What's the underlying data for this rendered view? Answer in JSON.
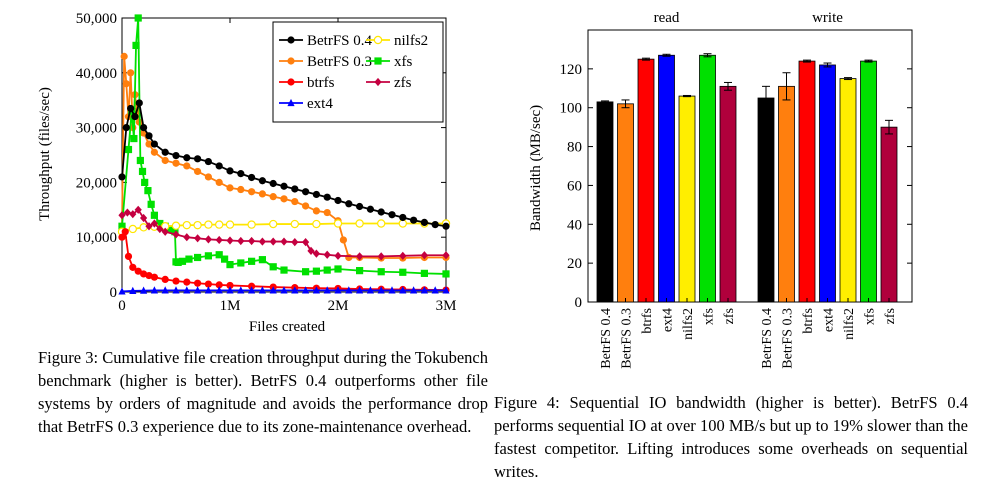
{
  "figure3": {
    "caption": "Figure 3: Cumulative file creation throughput during the Tokubench benchmark (higher is better). BetrFS 0.4 outperforms other file systems by orders of magnitude and avoids the performance drop that BetrFS 0.3 experience due to its zone-maintenance overhead.",
    "chart_data": {
      "type": "line",
      "xlabel": "Files created",
      "ylabel": "Throughput (files/sec)",
      "xlim": [
        0,
        3000000
      ],
      "ylim": [
        0,
        50000
      ],
      "xticks": [
        0,
        1000000,
        2000000,
        3000000
      ],
      "xtick_labels": [
        "0",
        "1M",
        "2M",
        "3M"
      ],
      "yticks": [
        0,
        10000,
        20000,
        30000,
        40000,
        50000
      ],
      "ytick_labels": [
        "0",
        "10,000",
        "20,000",
        "30,000",
        "40,000",
        "50,000"
      ],
      "grid": false,
      "legend_position": "top-right",
      "series": [
        {
          "name": "BetrFS 0.4",
          "color": "#000000",
          "marker": "circle-filled",
          "x": [
            0,
            40000,
            80000,
            120000,
            160000,
            200000,
            250000,
            300000,
            400000,
            500000,
            600000,
            700000,
            800000,
            900000,
            1000000,
            1100000,
            1200000,
            1300000,
            1400000,
            1500000,
            1600000,
            1700000,
            1800000,
            1900000,
            2000000,
            2100000,
            2200000,
            2300000,
            2400000,
            2500000,
            2600000,
            2700000,
            2800000,
            2900000,
            3000000
          ],
          "y": [
            21000,
            30000,
            33500,
            32000,
            34500,
            30000,
            28500,
            27000,
            25500,
            24900,
            24500,
            24300,
            23800,
            23000,
            22100,
            21600,
            20900,
            20300,
            19800,
            19300,
            18800,
            18300,
            17800,
            17300,
            16700,
            16100,
            15600,
            15100,
            14600,
            14100,
            13600,
            13100,
            12700,
            12300,
            12000
          ]
        },
        {
          "name": "BetrFS 0.3",
          "color": "#ff7f0e",
          "marker": "circle-filled",
          "x": [
            0,
            20000,
            40000,
            60000,
            80000,
            100000,
            120000,
            140000,
            160000,
            200000,
            250000,
            300000,
            400000,
            500000,
            600000,
            700000,
            800000,
            900000,
            1000000,
            1100000,
            1200000,
            1300000,
            1400000,
            1500000,
            1600000,
            1700000,
            1800000,
            1900000,
            2000000,
            2050000,
            2100000,
            2200000,
            2400000,
            2600000,
            2800000,
            3000000
          ],
          "y": [
            12000,
            43000,
            38000,
            32000,
            40000,
            30000,
            36000,
            33000,
            31000,
            29000,
            27000,
            25500,
            24000,
            23500,
            23000,
            22000,
            21000,
            20000,
            19000,
            18700,
            18300,
            17900,
            17400,
            17000,
            16500,
            15700,
            14800,
            14500,
            13000,
            9500,
            6300,
            6300,
            6200,
            6200,
            6300,
            6300
          ]
        },
        {
          "name": "btrfs",
          "color": "#ff0000",
          "marker": "circle-filled",
          "x": [
            0,
            30000,
            60000,
            100000,
            150000,
            200000,
            250000,
            300000,
            400000,
            500000,
            600000,
            700000,
            800000,
            900000,
            1000000,
            1200000,
            1400000,
            1600000,
            1800000,
            2000000,
            2200000,
            2400000,
            2600000,
            2800000,
            3000000
          ],
          "y": [
            10000,
            11000,
            6500,
            4500,
            3800,
            3300,
            3000,
            2700,
            2300,
            2000,
            1800,
            1600,
            1450,
            1300,
            1200,
            1050,
            900,
            800,
            700,
            650,
            550,
            500,
            450,
            400,
            350
          ]
        },
        {
          "name": "ext4",
          "color": "#0000ff",
          "marker": "triangle-filled",
          "x": [
            0,
            100000,
            200000,
            300000,
            400000,
            500000,
            600000,
            700000,
            800000,
            900000,
            1000000,
            1100000,
            1200000,
            1300000,
            1400000,
            1500000,
            1600000,
            1700000,
            1800000,
            1900000,
            2000000,
            2100000,
            2200000,
            2300000,
            2400000,
            2500000,
            2600000,
            2700000,
            2800000,
            2900000,
            3000000
          ],
          "y": [
            100,
            200,
            250,
            300,
            300,
            300,
            300,
            300,
            300,
            300,
            300,
            300,
            300,
            300,
            300,
            300,
            300,
            300,
            300,
            300,
            300,
            300,
            300,
            300,
            300,
            300,
            300,
            300,
            300,
            300,
            300
          ]
        },
        {
          "name": "nilfs2",
          "color": "#ffe600",
          "marker": "circle-open",
          "x": [
            0,
            100000,
            200000,
            300000,
            400000,
            500000,
            600000,
            700000,
            800000,
            900000,
            1000000,
            1200000,
            1400000,
            1600000,
            1800000,
            2000000,
            2200000,
            2400000,
            2600000,
            2800000,
            3000000
          ],
          "y": [
            11000,
            11500,
            11800,
            11900,
            12000,
            12100,
            12200,
            12200,
            12300,
            12300,
            12300,
            12300,
            12400,
            12400,
            12400,
            12500,
            12500,
            12500,
            12500,
            12500,
            12500
          ]
        },
        {
          "name": "xfs",
          "color": "#00e000",
          "marker": "square-filled",
          "x": [
            0,
            60000,
            90000,
            110000,
            130000,
            150000,
            170000,
            190000,
            210000,
            240000,
            270000,
            300000,
            350000,
            400000,
            450000,
            490000,
            500000,
            520000,
            560000,
            620000,
            700000,
            800000,
            900000,
            950000,
            1000000,
            1100000,
            1200000,
            1300000,
            1400000,
            1500000,
            1700000,
            1800000,
            1900000,
            2000000,
            2200000,
            2400000,
            2600000,
            2800000,
            3000000
          ],
          "y": [
            12000,
            26000,
            33000,
            28000,
            45000,
            50000,
            24000,
            22000,
            20000,
            18500,
            16000,
            14000,
            12500,
            12000,
            11500,
            11000,
            5500,
            5400,
            5600,
            6000,
            6300,
            6600,
            6800,
            6000,
            5000,
            5300,
            5600,
            5900,
            4600,
            4000,
            3700,
            3800,
            4000,
            4200,
            3900,
            3700,
            3600,
            3400,
            3300
          ]
        },
        {
          "name": "zfs",
          "color": "#c40040",
          "marker": "diamond-filled",
          "x": [
            0,
            50000,
            100000,
            150000,
            200000,
            250000,
            300000,
            350000,
            400000,
            500000,
            600000,
            700000,
            800000,
            900000,
            1000000,
            1100000,
            1200000,
            1300000,
            1400000,
            1500000,
            1600000,
            1700000,
            1750000,
            1800000,
            1900000,
            2000000,
            2200000,
            2400000,
            2600000,
            2800000,
            3000000
          ],
          "y": [
            14000,
            14500,
            14200,
            15000,
            13500,
            12000,
            12500,
            11500,
            11000,
            10500,
            10000,
            9800,
            9600,
            9500,
            9400,
            9300,
            9300,
            9200,
            9200,
            9200,
            9100,
            9100,
            7500,
            7000,
            6800,
            6600,
            6500,
            6500,
            6600,
            6700,
            6700
          ]
        }
      ]
    }
  },
  "figure4": {
    "caption": "Figure 4: Sequential IO bandwidth (higher is better). BetrFS 0.4 performs sequential IO at over 100 MB/s but up to 19% slower than the fastest competitor. Lifting introduces some overheads on sequential writes.",
    "chart_data": {
      "type": "bar",
      "ylabel": "Bandwidth (MB/sec)",
      "ylim": [
        0,
        140
      ],
      "yticks": [
        0,
        20,
        40,
        60,
        80,
        100,
        120
      ],
      "grid": false,
      "groups": [
        "read",
        "write"
      ],
      "categories": [
        "BetrFS 0.4",
        "BetrFS 0.3",
        "btrfs",
        "ext4",
        "nilfs2",
        "xfs",
        "zfs"
      ],
      "colors": [
        "#000000",
        "#ff7f0e",
        "#ff0000",
        "#0000ff",
        "#ffee00",
        "#00e000",
        "#b0003c"
      ],
      "series": [
        {
          "name": "read",
          "values": [
            103,
            102,
            125,
            127,
            106,
            127,
            111
          ],
          "errors": [
            0.5,
            2,
            0.5,
            0.5,
            0.3,
            0.8,
            2
          ]
        },
        {
          "name": "write",
          "values": [
            105,
            111,
            124,
            122,
            115,
            124,
            90
          ],
          "errors": [
            6,
            7,
            0.5,
            1,
            0.5,
            0.5,
            3.5
          ]
        }
      ]
    }
  }
}
